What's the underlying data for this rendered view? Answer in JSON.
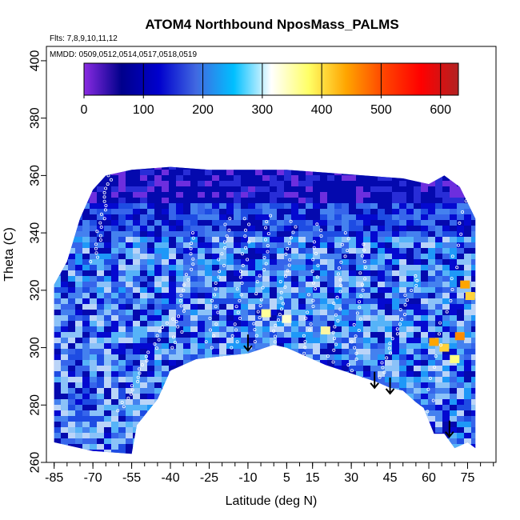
{
  "chart_data": {
    "type": "heatmap",
    "title": "ATOM4 Northbound NposMass_PALMS",
    "subtitle_flights": "Flts: 7,8,9,10,11,12",
    "subtitle_dates": "MMDD: 0509,0512,0514,0517,0518,0519",
    "xlabel": "Latitude (deg N)",
    "ylabel": "Theta (C)",
    "xlim": [
      -88,
      86
    ],
    "ylim": [
      260,
      405
    ],
    "x_ticks": [
      -85,
      -70,
      -55,
      -40,
      -25,
      -10,
      5,
      15,
      30,
      45,
      60,
      75
    ],
    "y_ticks": [
      260,
      280,
      300,
      320,
      340,
      360,
      380,
      400
    ],
    "colorbar": {
      "min": 0,
      "max": 630,
      "ticks": [
        0,
        100,
        200,
        300,
        400,
        500,
        600
      ],
      "colors": [
        "#8a2be2",
        "#00008b",
        "#0000cd",
        "#4169e1",
        "#00bfff",
        "#ffffff",
        "#ffff66",
        "#ffa500",
        "#ff4500",
        "#ff0000",
        "#b22222"
      ]
    },
    "lower_boundary": [
      [
        -85,
        267
      ],
      [
        -70,
        264
      ],
      [
        -55,
        263
      ],
      [
        -53,
        273
      ],
      [
        -45,
        282
      ],
      [
        -40,
        292
      ],
      [
        -30,
        296
      ],
      [
        -20,
        297
      ],
      [
        -10,
        298
      ],
      [
        0,
        301
      ],
      [
        5,
        300
      ],
      [
        10,
        298
      ],
      [
        20,
        294
      ],
      [
        30,
        291
      ],
      [
        40,
        288
      ],
      [
        45,
        286
      ],
      [
        50,
        285
      ],
      [
        55,
        281
      ],
      [
        58,
        279
      ],
      [
        62,
        270
      ],
      [
        66,
        270
      ],
      [
        70,
        265
      ],
      [
        75,
        267
      ],
      [
        78,
        265
      ]
    ],
    "upper_boundary": [
      [
        -85,
        322
      ],
      [
        -80,
        330
      ],
      [
        -75,
        345
      ],
      [
        -70,
        355
      ],
      [
        -65,
        360
      ],
      [
        -55,
        362
      ],
      [
        -40,
        363
      ],
      [
        -25,
        362
      ],
      [
        -10,
        362
      ],
      [
        5,
        362
      ],
      [
        20,
        361
      ],
      [
        35,
        360
      ],
      [
        50,
        359
      ],
      [
        60,
        357
      ],
      [
        66,
        360
      ],
      [
        72,
        356
      ],
      [
        78,
        345
      ]
    ],
    "arrows": [
      {
        "lat": -10,
        "theta": 299
      },
      {
        "lat": 39,
        "theta": 286
      },
      {
        "lat": 45,
        "theta": 284
      },
      {
        "lat": 68,
        "theta": 269
      }
    ],
    "flight_tracks": [
      {
        "lat_start": -60,
        "lat_end": -40,
        "theta_start": 278,
        "theta_end": 310
      },
      {
        "lat_start": -38,
        "lat_end": -30,
        "theta_start": 300,
        "theta_end": 340
      },
      {
        "lat_start": -25,
        "lat_end": -18,
        "theta_start": 300,
        "theta_end": 345
      },
      {
        "lat_start": -15,
        "lat_end": -10,
        "theta_start": 300,
        "theta_end": 345
      },
      {
        "lat_start": -8,
        "lat_end": -2,
        "theta_start": 300,
        "theta_end": 346
      },
      {
        "lat_start": 0,
        "lat_end": 8,
        "theta_start": 302,
        "theta_end": 344
      },
      {
        "lat_start": 12,
        "lat_end": 18,
        "theta_start": 298,
        "theta_end": 343
      },
      {
        "lat_start": 22,
        "lat_end": 28,
        "theta_start": 295,
        "theta_end": 340
      },
      {
        "lat_start": 30,
        "lat_end": 36,
        "theta_start": 292,
        "theta_end": 336
      },
      {
        "lat_start": 40,
        "lat_end": 55,
        "theta_start": 288,
        "theta_end": 325
      },
      {
        "lat_start": 58,
        "lat_end": 75,
        "theta_start": 270,
        "theta_end": 355
      },
      {
        "lat_start": -70,
        "lat_end": -62,
        "theta_start": 330,
        "theta_end": 363
      }
    ]
  }
}
